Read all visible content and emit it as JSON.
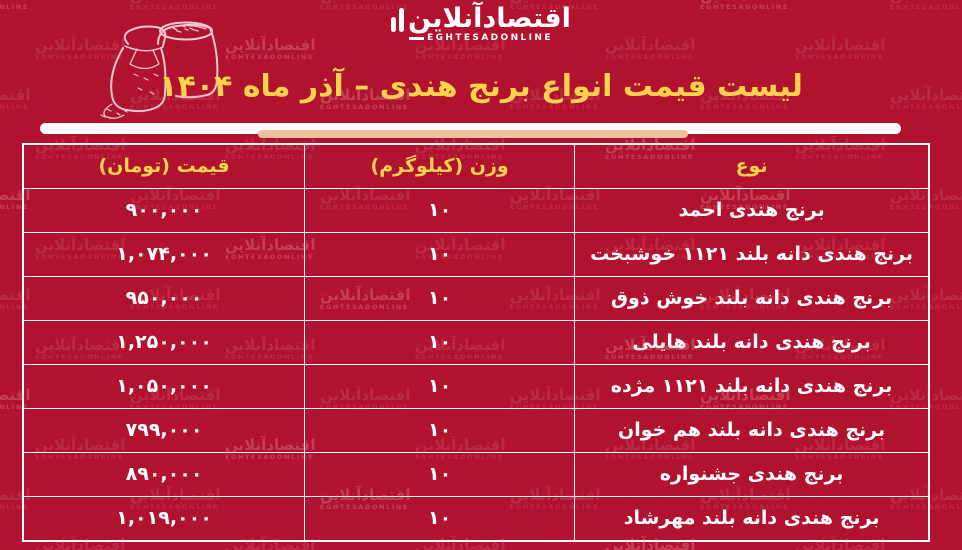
{
  "colors": {
    "background": "#b1122f",
    "accent_yellow": "#fbd44c",
    "peach_bar": "#edc29c",
    "text_white": "#ffffff",
    "watermark_pink": "#f3a6a6"
  },
  "brand": {
    "logo_fa": "اقتصادآنلاین",
    "logo_en": "EGHTESADONLINE"
  },
  "watermark": {
    "text_fa": "اقتصادآنلاین",
    "text_en": "EGHTESADONLINE"
  },
  "illustration": "rice-bags-sketch",
  "title": "لیست قیمت انواع برنج هندی – آذر ماه ۱۴۰۴",
  "table": {
    "headers": [
      "نوع",
      "وزن (کیلوگرم)",
      "قیمت (تومان)"
    ],
    "rows": [
      [
        "برنج هندی احمد",
        "۱۰",
        "۹۰۰,۰۰۰"
      ],
      [
        "برنج هندی دانه بلند ۱۱۲۱ خوشبخت",
        "۱۰",
        "۱,۰۷۴,۰۰۰"
      ],
      [
        "برنج هندی دانه بلند خوش ذوق",
        "۱۰",
        "۹۵۰,۰۰۰"
      ],
      [
        "برنج هندی دانه بلند هایلی",
        "۱۰",
        "۱,۲۵۰,۰۰۰"
      ],
      [
        "برنج هندی دانه بلند ۱۱۲۱ مژده",
        "۱۰",
        "۱,۰۵۰,۰۰۰"
      ],
      [
        "برنج هندی دانه بلند هم خوان",
        "۱۰",
        "۷۹۹,۰۰۰"
      ],
      [
        "برنج هندی جشنواره",
        "۱۰",
        "۸۹۰,۰۰۰"
      ],
      [
        "برنج هندی دانه بلند مهرشاد",
        "۱۰",
        "۱,۰۱۹,۰۰۰"
      ]
    ]
  },
  "chart_data": {
    "type": "table",
    "title": "لیست قیمت انواع برنج هندی – آذر ماه ۱۴۰۴",
    "columns": [
      "نوع",
      "وزن (کیلوگرم)",
      "قیمت (تومان)"
    ],
    "rows": [
      [
        "برنج هندی احمد",
        10,
        900000
      ],
      [
        "برنج هندی دانه بلند ۱۱۲۱ خوشبخت",
        10,
        1074000
      ],
      [
        "برنج هندی دانه بلند خوش ذوق",
        10,
        950000
      ],
      [
        "برنج هندی دانه بلند هایلی",
        10,
        1250000
      ],
      [
        "برنج هندی دانه بلند ۱۱۲۱ مژده",
        10,
        1050000
      ],
      [
        "برنج هندی دانه بلند هم خوان",
        10,
        799000
      ],
      [
        "برنج هندی جشنواره",
        10,
        890000
      ],
      [
        "برنج هندی دانه بلند مهرشاد",
        10,
        1019000
      ]
    ]
  }
}
